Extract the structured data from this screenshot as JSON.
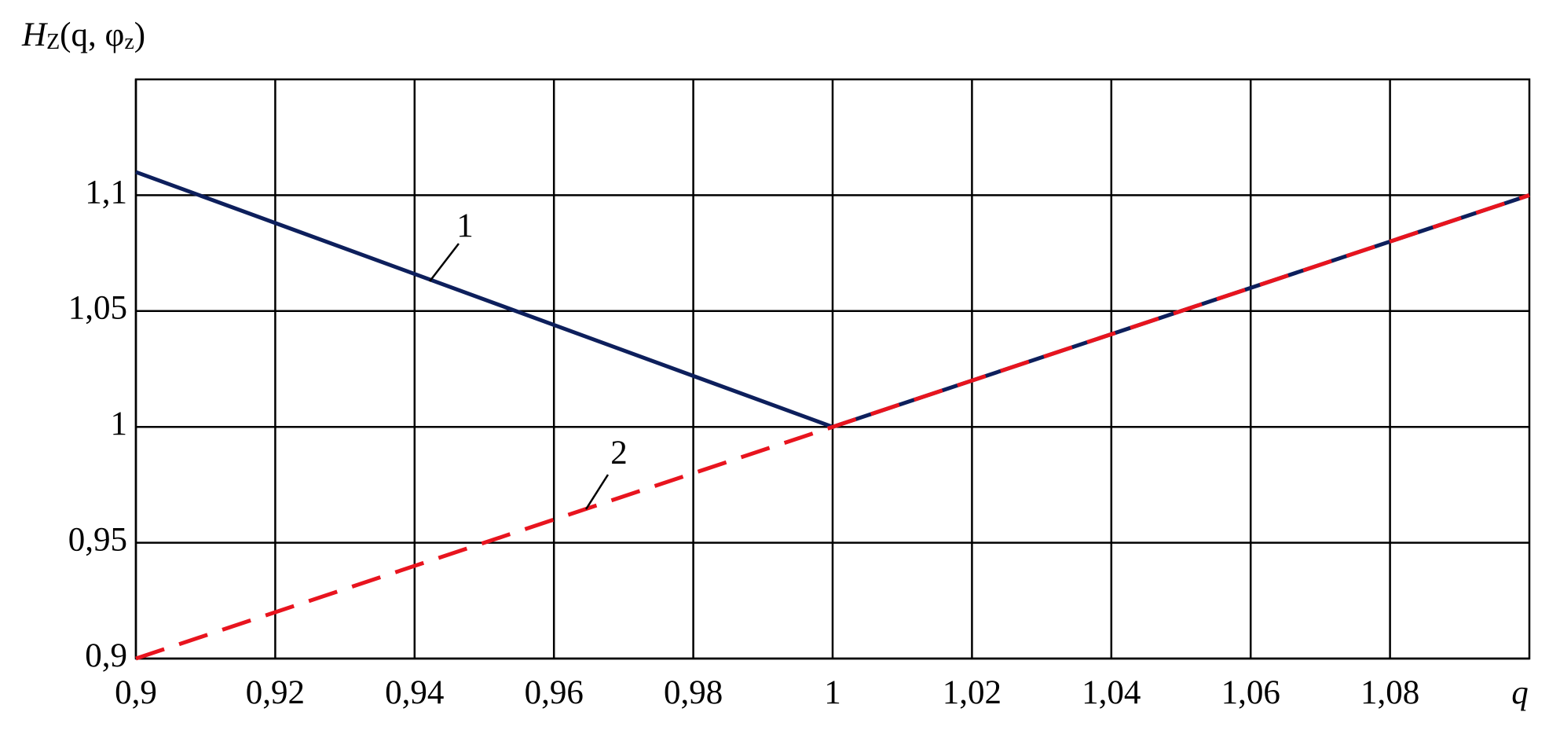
{
  "chart_data": {
    "type": "line",
    "ylabel_parts": [
      "H",
      "Z",
      "(q, φ",
      "z",
      ")"
    ],
    "xlabel": "q",
    "xlim": [
      0.9,
      1.1
    ],
    "ylim": [
      0.9,
      1.15
    ],
    "xticks": [
      {
        "value": 0.9,
        "label": "0,9"
      },
      {
        "value": 0.92,
        "label": "0,92"
      },
      {
        "value": 0.94,
        "label": "0,94"
      },
      {
        "value": 0.96,
        "label": "0,96"
      },
      {
        "value": 0.98,
        "label": "0,98"
      },
      1,
      {
        "value": 1.02,
        "label": "1,02"
      },
      {
        "value": 1.04,
        "label": "1,04"
      },
      {
        "value": 1.06,
        "label": "1,06"
      },
      {
        "value": 1.08,
        "label": "1,08"
      }
    ],
    "yticks": [
      {
        "value": 0.9,
        "label": "0,9"
      },
      {
        "value": 0.95,
        "label": "0,95"
      },
      1,
      {
        "value": 1.05,
        "label": "1,05"
      },
      {
        "value": 1.1,
        "label": "1,1"
      }
    ],
    "grid": true,
    "x": [
      0.9,
      1,
      1.1
    ],
    "series": [
      {
        "name": "1",
        "color": "#0d1f5c",
        "dashed": false,
        "values": [
          1.11,
          1,
          1.1
        ]
      },
      {
        "name": "2",
        "color": "#e8141e",
        "dashed": true,
        "values": [
          0.9,
          1,
          1.1
        ]
      }
    ]
  }
}
